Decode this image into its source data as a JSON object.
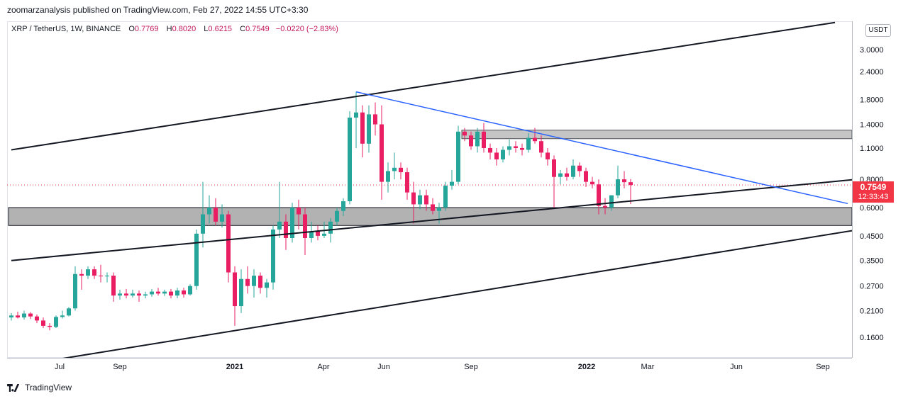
{
  "header": {
    "published": "zoomarzanalysis published on TradingView.com, Feb 27, 2022 14:55 UTC+3:30"
  },
  "symbol": {
    "title": "XRP / TetherUS, 1W, BINANCE",
    "open_label": "O",
    "open": "0.7769",
    "high_label": "H",
    "high": "0.8020",
    "low_label": "L",
    "low": "0.6215",
    "close_label": "C",
    "close": "0.7549",
    "change": "−0.0220 (−2.83%)"
  },
  "price_axis": {
    "currency": "USDT",
    "current_price": "0.7549",
    "countdown": "12:33:43"
  },
  "footer": {
    "brand": "TradingView"
  },
  "colors": {
    "up": "#26a69a",
    "down": "#ef5350",
    "down_body": "#e91e63",
    "trendline_blue": "#2962ff",
    "zone_fill": "#b2b2b2",
    "price_line": "#f23645"
  },
  "chart_data": {
    "type": "candlestick",
    "y_scale": "log",
    "ylim": [
      0.13,
      4.0
    ],
    "y_ticks": [
      "3.0000",
      "2.4000",
      "1.8000",
      "1.4000",
      "1.1000",
      "0.8000",
      "0.6000",
      "0.4500",
      "0.3500",
      "0.2700",
      "0.2100",
      "0.1600"
    ],
    "x_ticks": [
      "Jul",
      "Sep",
      "2021",
      "Apr",
      "Jun",
      "Sep",
      "2022",
      "Mar",
      "Jun",
      "Sep"
    ],
    "candles": [
      {
        "o": 0.196,
        "h": 0.205,
        "l": 0.19,
        "c": 0.2
      },
      {
        "o": 0.2,
        "h": 0.208,
        "l": 0.194,
        "c": 0.196
      },
      {
        "o": 0.196,
        "h": 0.21,
        "l": 0.192,
        "c": 0.204
      },
      {
        "o": 0.204,
        "h": 0.207,
        "l": 0.193,
        "c": 0.198
      },
      {
        "o": 0.198,
        "h": 0.202,
        "l": 0.185,
        "c": 0.19
      },
      {
        "o": 0.19,
        "h": 0.196,
        "l": 0.176,
        "c": 0.18
      },
      {
        "o": 0.18,
        "h": 0.185,
        "l": 0.172,
        "c": 0.178
      },
      {
        "o": 0.178,
        "h": 0.2,
        "l": 0.176,
        "c": 0.197
      },
      {
        "o": 0.197,
        "h": 0.21,
        "l": 0.194,
        "c": 0.2
      },
      {
        "o": 0.2,
        "h": 0.218,
        "l": 0.198,
        "c": 0.215
      },
      {
        "o": 0.215,
        "h": 0.33,
        "l": 0.21,
        "c": 0.305
      },
      {
        "o": 0.305,
        "h": 0.32,
        "l": 0.26,
        "c": 0.3
      },
      {
        "o": 0.3,
        "h": 0.33,
        "l": 0.29,
        "c": 0.32
      },
      {
        "o": 0.32,
        "h": 0.33,
        "l": 0.29,
        "c": 0.3
      },
      {
        "o": 0.3,
        "h": 0.335,
        "l": 0.28,
        "c": 0.298
      },
      {
        "o": 0.298,
        "h": 0.31,
        "l": 0.28,
        "c": 0.3
      },
      {
        "o": 0.3,
        "h": 0.31,
        "l": 0.23,
        "c": 0.245
      },
      {
        "o": 0.245,
        "h": 0.26,
        "l": 0.235,
        "c": 0.25
      },
      {
        "o": 0.25,
        "h": 0.262,
        "l": 0.238,
        "c": 0.245
      },
      {
        "o": 0.245,
        "h": 0.26,
        "l": 0.24,
        "c": 0.25
      },
      {
        "o": 0.25,
        "h": 0.258,
        "l": 0.23,
        "c": 0.245
      },
      {
        "o": 0.245,
        "h": 0.255,
        "l": 0.238,
        "c": 0.248
      },
      {
        "o": 0.248,
        "h": 0.262,
        "l": 0.242,
        "c": 0.255
      },
      {
        "o": 0.255,
        "h": 0.265,
        "l": 0.245,
        "c": 0.25
      },
      {
        "o": 0.25,
        "h": 0.26,
        "l": 0.244,
        "c": 0.255
      },
      {
        "o": 0.255,
        "h": 0.262,
        "l": 0.238,
        "c": 0.245
      },
      {
        "o": 0.245,
        "h": 0.265,
        "l": 0.238,
        "c": 0.258
      },
      {
        "o": 0.258,
        "h": 0.265,
        "l": 0.24,
        "c": 0.248
      },
      {
        "o": 0.248,
        "h": 0.275,
        "l": 0.245,
        "c": 0.27
      },
      {
        "o": 0.27,
        "h": 0.48,
        "l": 0.26,
        "c": 0.46
      },
      {
        "o": 0.46,
        "h": 0.78,
        "l": 0.4,
        "c": 0.56
      },
      {
        "o": 0.56,
        "h": 0.68,
        "l": 0.51,
        "c": 0.6
      },
      {
        "o": 0.6,
        "h": 0.66,
        "l": 0.5,
        "c": 0.52
      },
      {
        "o": 0.52,
        "h": 0.62,
        "l": 0.49,
        "c": 0.56
      },
      {
        "o": 0.56,
        "h": 0.58,
        "l": 0.28,
        "c": 0.31
      },
      {
        "o": 0.31,
        "h": 0.33,
        "l": 0.18,
        "c": 0.22
      },
      {
        "o": 0.22,
        "h": 0.32,
        "l": 0.205,
        "c": 0.29
      },
      {
        "o": 0.29,
        "h": 0.33,
        "l": 0.25,
        "c": 0.27
      },
      {
        "o": 0.27,
        "h": 0.32,
        "l": 0.24,
        "c": 0.3
      },
      {
        "o": 0.3,
        "h": 0.31,
        "l": 0.25,
        "c": 0.265
      },
      {
        "o": 0.265,
        "h": 0.29,
        "l": 0.24,
        "c": 0.28
      },
      {
        "o": 0.28,
        "h": 0.5,
        "l": 0.26,
        "c": 0.48
      },
      {
        "o": 0.48,
        "h": 0.78,
        "l": 0.44,
        "c": 0.52
      },
      {
        "o": 0.52,
        "h": 0.56,
        "l": 0.39,
        "c": 0.44
      },
      {
        "o": 0.44,
        "h": 0.63,
        "l": 0.42,
        "c": 0.6
      },
      {
        "o": 0.6,
        "h": 0.65,
        "l": 0.48,
        "c": 0.56
      },
      {
        "o": 0.56,
        "h": 0.6,
        "l": 0.37,
        "c": 0.44
      },
      {
        "o": 0.44,
        "h": 0.52,
        "l": 0.42,
        "c": 0.47
      },
      {
        "o": 0.47,
        "h": 0.5,
        "l": 0.43,
        "c": 0.45
      },
      {
        "o": 0.45,
        "h": 0.52,
        "l": 0.44,
        "c": 0.46
      },
      {
        "o": 0.46,
        "h": 0.54,
        "l": 0.42,
        "c": 0.52
      },
      {
        "o": 0.52,
        "h": 0.6,
        "l": 0.5,
        "c": 0.58
      },
      {
        "o": 0.58,
        "h": 0.66,
        "l": 0.55,
        "c": 0.64
      },
      {
        "o": 0.64,
        "h": 1.6,
        "l": 0.62,
        "c": 1.5
      },
      {
        "o": 1.5,
        "h": 1.95,
        "l": 1.1,
        "c": 1.58
      },
      {
        "o": 1.58,
        "h": 1.7,
        "l": 1.0,
        "c": 1.15
      },
      {
        "o": 1.15,
        "h": 1.7,
        "l": 1.05,
        "c": 1.55
      },
      {
        "o": 1.55,
        "h": 1.75,
        "l": 1.25,
        "c": 1.4
      },
      {
        "o": 1.4,
        "h": 1.7,
        "l": 0.65,
        "c": 0.78
      },
      {
        "o": 0.78,
        "h": 0.95,
        "l": 0.7,
        "c": 0.87
      },
      {
        "o": 0.87,
        "h": 1.05,
        "l": 0.8,
        "c": 0.9
      },
      {
        "o": 0.9,
        "h": 0.95,
        "l": 0.8,
        "c": 0.86
      },
      {
        "o": 0.86,
        "h": 0.9,
        "l": 0.65,
        "c": 0.7
      },
      {
        "o": 0.7,
        "h": 0.78,
        "l": 0.51,
        "c": 0.62
      },
      {
        "o": 0.62,
        "h": 0.72,
        "l": 0.59,
        "c": 0.68
      },
      {
        "o": 0.68,
        "h": 0.72,
        "l": 0.58,
        "c": 0.62
      },
      {
        "o": 0.62,
        "h": 0.66,
        "l": 0.56,
        "c": 0.58
      },
      {
        "o": 0.58,
        "h": 0.63,
        "l": 0.51,
        "c": 0.6
      },
      {
        "o": 0.6,
        "h": 0.78,
        "l": 0.58,
        "c": 0.75
      },
      {
        "o": 0.75,
        "h": 0.88,
        "l": 0.72,
        "c": 0.78
      },
      {
        "o": 0.78,
        "h": 1.38,
        "l": 0.76,
        "c": 1.3
      },
      {
        "o": 1.3,
        "h": 1.35,
        "l": 1.18,
        "c": 1.25
      },
      {
        "o": 1.25,
        "h": 1.3,
        "l": 1.08,
        "c": 1.12
      },
      {
        "o": 1.12,
        "h": 1.35,
        "l": 1.05,
        "c": 1.3
      },
      {
        "o": 1.3,
        "h": 1.42,
        "l": 1.05,
        "c": 1.1
      },
      {
        "o": 1.1,
        "h": 1.15,
        "l": 0.98,
        "c": 1.05
      },
      {
        "o": 1.05,
        "h": 1.1,
        "l": 0.92,
        "c": 0.98
      },
      {
        "o": 0.98,
        "h": 1.12,
        "l": 0.95,
        "c": 1.08
      },
      {
        "o": 1.08,
        "h": 1.2,
        "l": 1.02,
        "c": 1.12
      },
      {
        "o": 1.12,
        "h": 1.18,
        "l": 1.05,
        "c": 1.1
      },
      {
        "o": 1.1,
        "h": 1.15,
        "l": 1.02,
        "c": 1.08
      },
      {
        "o": 1.08,
        "h": 1.28,
        "l": 1.05,
        "c": 1.22
      },
      {
        "o": 1.22,
        "h": 1.35,
        "l": 1.15,
        "c": 1.18
      },
      {
        "o": 1.18,
        "h": 1.25,
        "l": 1.0,
        "c": 1.05
      },
      {
        "o": 1.05,
        "h": 1.1,
        "l": 0.92,
        "c": 0.98
      },
      {
        "o": 0.98,
        "h": 1.02,
        "l": 0.6,
        "c": 0.82
      },
      {
        "o": 0.82,
        "h": 0.88,
        "l": 0.76,
        "c": 0.85
      },
      {
        "o": 0.85,
        "h": 0.9,
        "l": 0.79,
        "c": 0.82
      },
      {
        "o": 0.82,
        "h": 0.98,
        "l": 0.8,
        "c": 0.92
      },
      {
        "o": 0.92,
        "h": 0.95,
        "l": 0.82,
        "c": 0.87
      },
      {
        "o": 0.87,
        "h": 0.9,
        "l": 0.74,
        "c": 0.78
      },
      {
        "o": 0.78,
        "h": 0.82,
        "l": 0.73,
        "c": 0.76
      },
      {
        "o": 0.76,
        "h": 0.8,
        "l": 0.56,
        "c": 0.61
      },
      {
        "o": 0.61,
        "h": 0.66,
        "l": 0.56,
        "c": 0.6
      },
      {
        "o": 0.6,
        "h": 0.68,
        "l": 0.58,
        "c": 0.68
      },
      {
        "o": 0.68,
        "h": 0.92,
        "l": 0.66,
        "c": 0.8
      },
      {
        "o": 0.8,
        "h": 0.87,
        "l": 0.73,
        "c": 0.777
      },
      {
        "o": 0.7769,
        "h": 0.802,
        "l": 0.6215,
        "c": 0.7549
      }
    ],
    "trendlines": [
      {
        "name": "channel-upper",
        "color": "#131722",
        "from": [
          0,
          1.08
        ],
        "to": [
          129,
          3.95
        ]
      },
      {
        "name": "channel-middle",
        "color": "#131722",
        "from": [
          0,
          0.35
        ],
        "to": [
          144,
          0.86
        ]
      },
      {
        "name": "channel-lower",
        "color": "#131722",
        "from": [
          5,
          0.125
        ],
        "to": [
          144,
          0.54
        ]
      },
      {
        "name": "resistance-blue",
        "color": "#2962ff",
        "from": [
          54,
          1.95
        ],
        "to": [
          131,
          0.625
        ]
      }
    ],
    "zones": [
      {
        "name": "support-zone",
        "low": 0.5,
        "high": 0.6,
        "from": 0,
        "to": 144
      },
      {
        "name": "resistance-zone",
        "low": 1.21,
        "high": 1.32,
        "from": 71,
        "to": 144
      }
    ]
  }
}
